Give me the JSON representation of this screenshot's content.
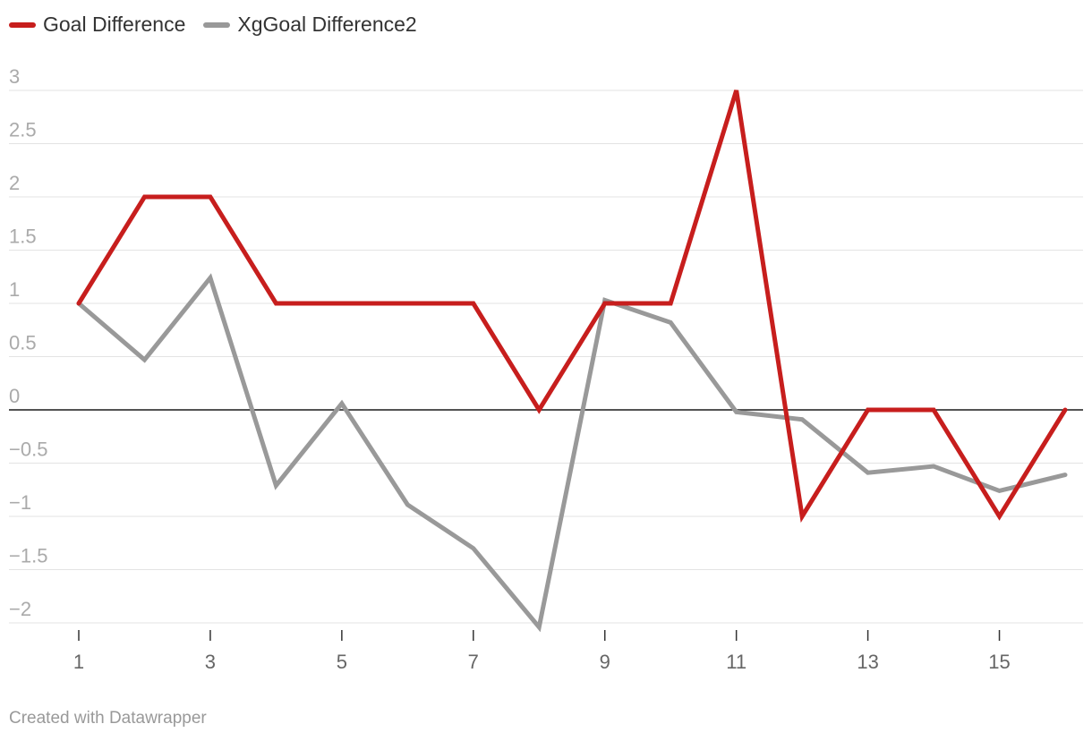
{
  "chart_data": {
    "type": "line",
    "x": [
      1,
      2,
      3,
      4,
      5,
      6,
      7,
      8,
      9,
      10,
      11,
      12,
      13,
      14,
      15,
      16
    ],
    "series": [
      {
        "name": "Goal Difference",
        "color": "#c71e1d",
        "values": [
          1,
          2,
          2,
          1,
          1,
          1,
          1,
          0,
          1,
          1,
          3,
          -1,
          0,
          0,
          -1,
          0
        ]
      },
      {
        "name": "XgGoal Difference2",
        "color": "#999999",
        "values": [
          1,
          0.47,
          1.24,
          -0.71,
          0.06,
          -0.89,
          -1.3,
          -2.04,
          1.03,
          0.82,
          -0.02,
          -0.09,
          -0.59,
          -0.53,
          -0.76,
          -0.61
        ]
      }
    ],
    "y_ticks": [
      3,
      2.5,
      2,
      1.5,
      1,
      0.5,
      0,
      -0.5,
      -1,
      -1.5,
      -2
    ],
    "y_tick_labels": [
      "3",
      "2.5",
      "2",
      "1.5",
      "1",
      "0.5",
      "0",
      "−0.5",
      "−1",
      "−1.5",
      "−2"
    ],
    "x_ticks": [
      1,
      3,
      5,
      7,
      9,
      11,
      13,
      15
    ],
    "ylim": [
      -2.05,
      3
    ],
    "xlim": [
      1,
      16
    ],
    "grid": true,
    "legend_position": "top-left"
  },
  "footer": {
    "credit": "Created with Datawrapper"
  }
}
